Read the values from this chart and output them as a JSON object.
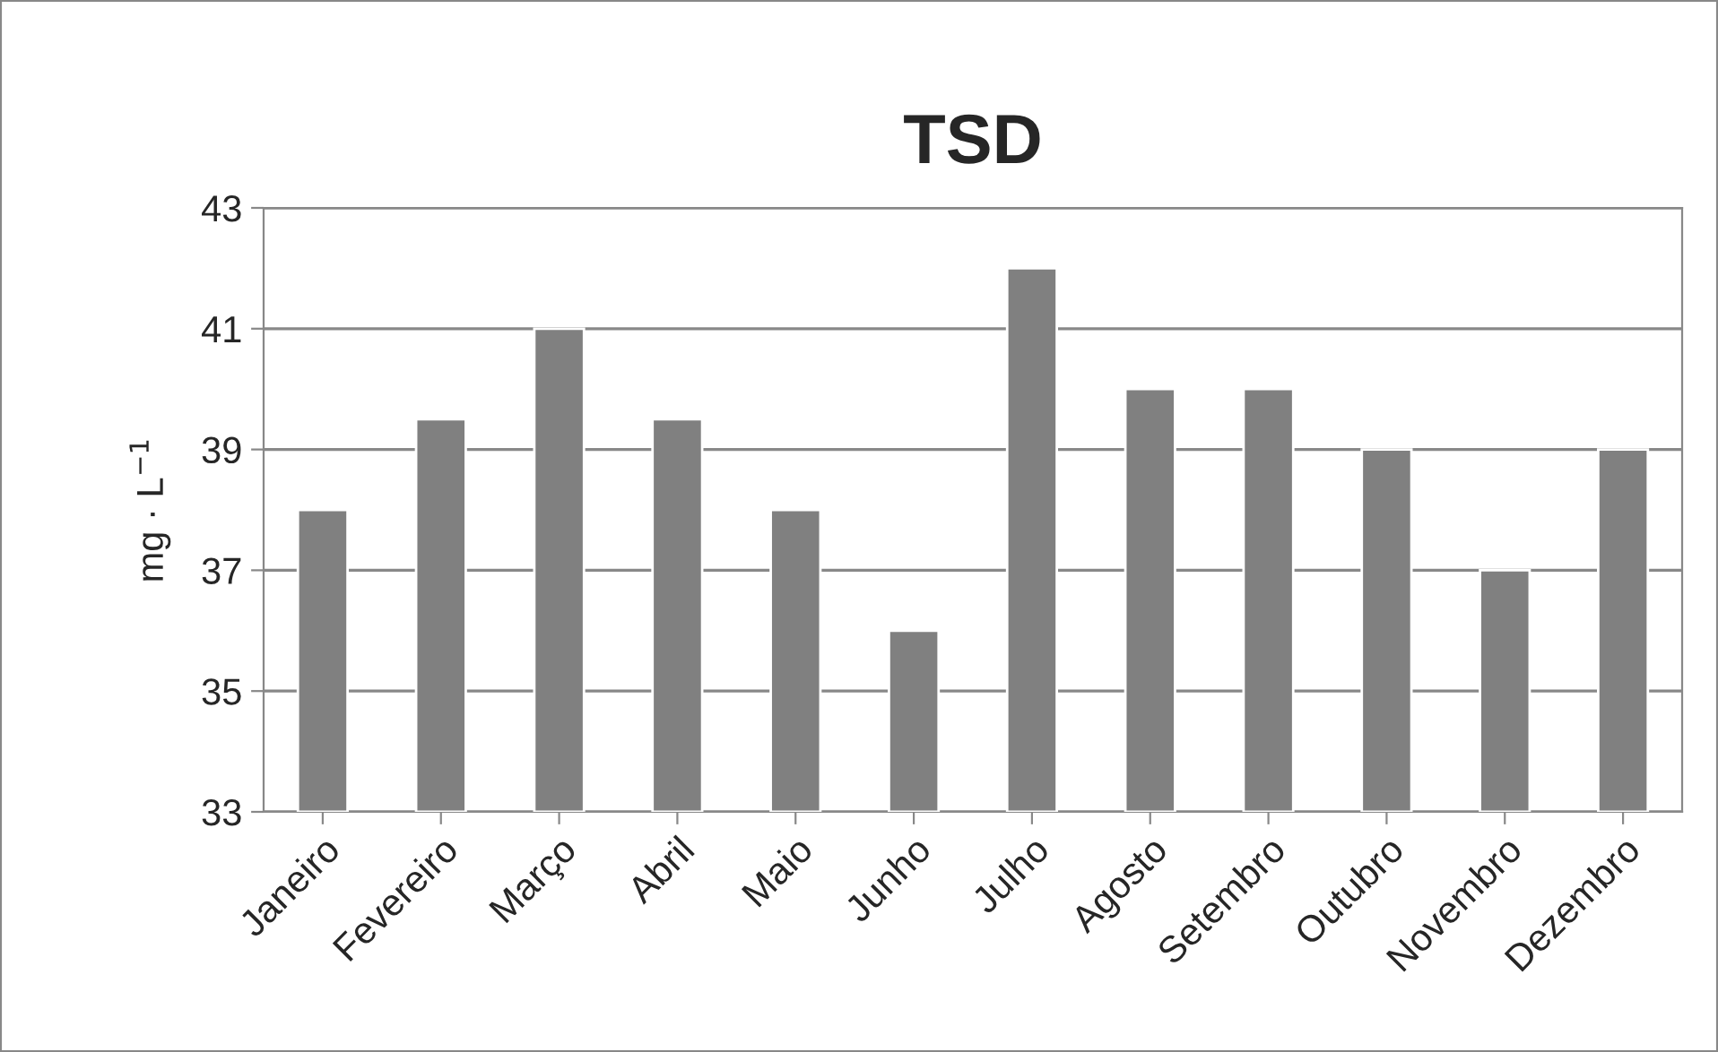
{
  "chart_data": {
    "type": "bar",
    "title": "TSD",
    "ylabel": "mg · L$^{−1}$",
    "categories": [
      "Janeiro",
      "Fevereiro",
      "Março",
      "Abril",
      "Maio",
      "Junho",
      "Julho",
      "Agosto",
      "Setembro",
      "Outubro",
      "Novembro",
      "Dezembro"
    ],
    "values": [
      38,
      39.5,
      41,
      39.5,
      38,
      36,
      42,
      40,
      40,
      39,
      37,
      39
    ],
    "color": "#808080",
    "ylim": [
      33,
      43
    ],
    "yticks": [
      33,
      35,
      37,
      39,
      41,
      43
    ],
    "grid": "y",
    "legend": false
  }
}
